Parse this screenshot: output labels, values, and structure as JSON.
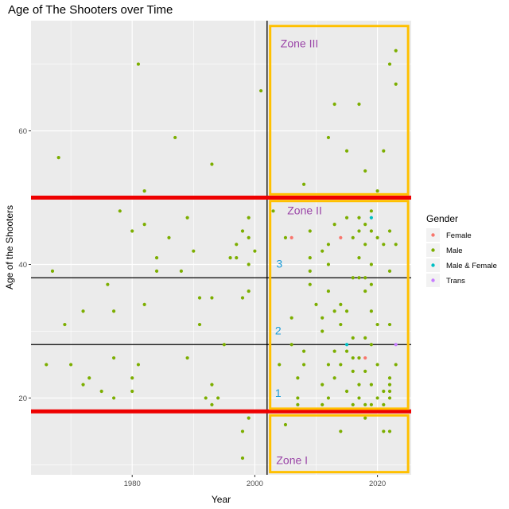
{
  "chart_data": {
    "type": "scatter",
    "title": "Age of The Shooters over Time",
    "xlabel": "Year",
    "ylabel": "Age of the Shooters",
    "xlim": [
      1963.5,
      2025.5
    ],
    "ylim": [
      8.5,
      76.5
    ],
    "x_ticks": [
      1980,
      2000,
      2020
    ],
    "y_ticks": [
      20,
      40,
      60
    ],
    "grid": true,
    "legend_title": "Gender",
    "legend_position": "right",
    "series": [
      {
        "name": "Female",
        "color": "#F8766D",
        "points": [
          [
            2006,
            44
          ],
          [
            2014,
            44
          ],
          [
            2017,
            26
          ],
          [
            2018,
            26
          ]
        ]
      },
      {
        "name": "Male",
        "color": "#7CAE00",
        "points": [
          [
            1966,
            25
          ],
          [
            1967,
            39
          ],
          [
            1968,
            56
          ],
          [
            1969,
            31
          ],
          [
            1970,
            25
          ],
          [
            1972,
            22
          ],
          [
            1972,
            33
          ],
          [
            1973,
            23
          ],
          [
            1975,
            21
          ],
          [
            1976,
            37
          ],
          [
            1977,
            20
          ],
          [
            1977,
            26
          ],
          [
            1977,
            33
          ],
          [
            1978,
            48
          ],
          [
            1980,
            21
          ],
          [
            1980,
            23
          ],
          [
            1980,
            45
          ],
          [
            1981,
            70
          ],
          [
            1981,
            25
          ],
          [
            1982,
            34
          ],
          [
            1982,
            46
          ],
          [
            1982,
            51
          ],
          [
            1984,
            39
          ],
          [
            1984,
            41
          ],
          [
            1986,
            44
          ],
          [
            1987,
            59
          ],
          [
            1988,
            39
          ],
          [
            1989,
            26
          ],
          [
            1989,
            47
          ],
          [
            1990,
            42
          ],
          [
            1991,
            35
          ],
          [
            1991,
            31
          ],
          [
            1992,
            20
          ],
          [
            1993,
            19
          ],
          [
            1993,
            22
          ],
          [
            1993,
            35
          ],
          [
            1993,
            55
          ],
          [
            1994,
            20
          ],
          [
            1995,
            28
          ],
          [
            1996,
            41
          ],
          [
            1997,
            41
          ],
          [
            1997,
            43
          ],
          [
            1998,
            15
          ],
          [
            1998,
            11
          ],
          [
            1998,
            35
          ],
          [
            1998,
            45
          ],
          [
            1999,
            17
          ],
          [
            1999,
            36
          ],
          [
            1999,
            40
          ],
          [
            1999,
            44
          ],
          [
            1999,
            47
          ],
          [
            2000,
            42
          ],
          [
            2001,
            66
          ],
          [
            2003,
            48
          ],
          [
            2004,
            25
          ],
          [
            2005,
            16
          ],
          [
            2005,
            44
          ],
          [
            2006,
            32
          ],
          [
            2006,
            28
          ],
          [
            2007,
            20
          ],
          [
            2007,
            19
          ],
          [
            2007,
            23
          ],
          [
            2008,
            27
          ],
          [
            2008,
            25
          ],
          [
            2008,
            52
          ],
          [
            2009,
            37
          ],
          [
            2009,
            39
          ],
          [
            2009,
            41
          ],
          [
            2009,
            45
          ],
          [
            2010,
            34
          ],
          [
            2011,
            30
          ],
          [
            2011,
            32
          ],
          [
            2011,
            42
          ],
          [
            2011,
            22
          ],
          [
            2011,
            19
          ],
          [
            2012,
            20
          ],
          [
            2012,
            25
          ],
          [
            2012,
            40
          ],
          [
            2012,
            43
          ],
          [
            2012,
            36
          ],
          [
            2012,
            59
          ],
          [
            2013,
            64
          ],
          [
            2013,
            27
          ],
          [
            2013,
            23
          ],
          [
            2013,
            33
          ],
          [
            2013,
            46
          ],
          [
            2014,
            34
          ],
          [
            2014,
            15
          ],
          [
            2014,
            25
          ],
          [
            2014,
            31
          ],
          [
            2015,
            33
          ],
          [
            2015,
            21
          ],
          [
            2015,
            27
          ],
          [
            2015,
            57
          ],
          [
            2015,
            47
          ],
          [
            2016,
            44
          ],
          [
            2016,
            38
          ],
          [
            2016,
            29
          ],
          [
            2016,
            26
          ],
          [
            2016,
            24
          ],
          [
            2016,
            19
          ],
          [
            2017,
            64
          ],
          [
            2017,
            47
          ],
          [
            2017,
            45
          ],
          [
            2017,
            38
          ],
          [
            2017,
            26
          ],
          [
            2017,
            22
          ],
          [
            2017,
            20
          ],
          [
            2017,
            41
          ],
          [
            2018,
            54
          ],
          [
            2018,
            46
          ],
          [
            2018,
            38
          ],
          [
            2018,
            36
          ],
          [
            2018,
            29
          ],
          [
            2018,
            24
          ],
          [
            2018,
            17
          ],
          [
            2018,
            19
          ],
          [
            2018,
            43
          ],
          [
            2019,
            45
          ],
          [
            2019,
            40
          ],
          [
            2019,
            37
          ],
          [
            2019,
            33
          ],
          [
            2019,
            28
          ],
          [
            2019,
            22
          ],
          [
            2019,
            19
          ],
          [
            2019,
            48
          ],
          [
            2020,
            51
          ],
          [
            2020,
            44
          ],
          [
            2020,
            31
          ],
          [
            2020,
            25
          ],
          [
            2020,
            20
          ],
          [
            2021,
            57
          ],
          [
            2021,
            19
          ],
          [
            2021,
            21
          ],
          [
            2021,
            15
          ],
          [
            2021,
            43
          ],
          [
            2022,
            70
          ],
          [
            2022,
            45
          ],
          [
            2022,
            39
          ],
          [
            2022,
            31
          ],
          [
            2022,
            23
          ],
          [
            2022,
            22
          ],
          [
            2022,
            21
          ],
          [
            2022,
            20
          ],
          [
            2022,
            15
          ],
          [
            2023,
            72
          ],
          [
            2023,
            67
          ],
          [
            2023,
            43
          ],
          [
            2023,
            25
          ]
        ]
      },
      {
        "name": "Male & Female",
        "color": "#00BFC4",
        "points": [
          [
            2015,
            28
          ],
          [
            2019,
            47
          ]
        ]
      },
      {
        "name": "Trans",
        "color": "#C77CFF",
        "points": [
          [
            2023,
            28
          ]
        ]
      }
    ],
    "annotations": {
      "vertical_line_x": 2002,
      "red_lines_y": [
        50,
        18
      ],
      "black_lines_y": [
        38,
        28
      ],
      "line_numbers": [
        {
          "text": "3",
          "x": 2003.5,
          "y": 39.5
        },
        {
          "text": "2",
          "x": 2003.3,
          "y": 29.5
        },
        {
          "text": "1",
          "x": 2003.3,
          "y": 20.2
        }
      ],
      "zones": [
        {
          "label": "Zone III",
          "x0": 2002.5,
          "x1": 2025.0,
          "y0": 50.5,
          "y1": 75.7,
          "label_x": 2004.2,
          "label_y": 72.5
        },
        {
          "label": "Zone II",
          "x0": 2002.5,
          "x1": 2025.0,
          "y0": 18.4,
          "y1": 49.5,
          "label_x": 2005.3,
          "label_y": 47.5
        },
        {
          "label": "Zone I",
          "x0": 2002.5,
          "x1": 2025.0,
          "y0": 8.9,
          "y1": 17.4,
          "label_x": 2003.5,
          "label_y": 10.1
        }
      ]
    },
    "colors": {
      "panel": "#EBEBEB",
      "grid": "#FFFFFF",
      "red_line": "#EE0000",
      "black_line": "#000000",
      "zone_border": "#FFC000",
      "zone_label": "#9B46A8",
      "line_number": "#1A9DD9"
    }
  }
}
